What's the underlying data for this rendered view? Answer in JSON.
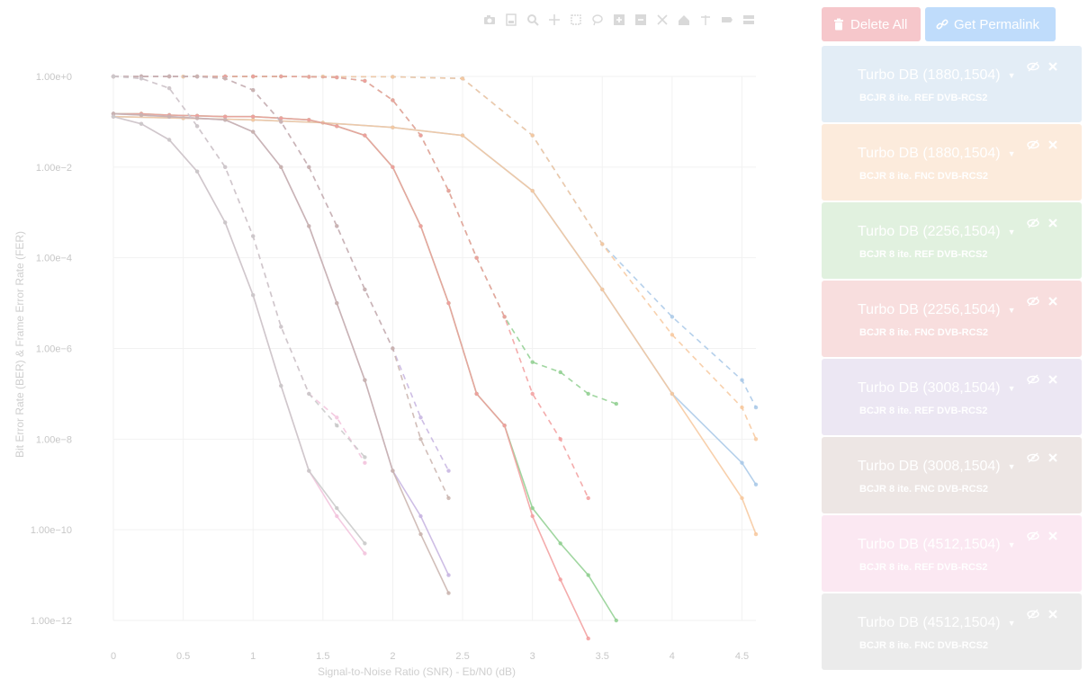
{
  "chart_data": {
    "type": "line",
    "xlabel": "Signal-to-Noise Ratio (SNR) - Eb/N0 (dB)",
    "ylabel": "Bit Error Rate (BER) & Frame Error Rate (FER)",
    "xlim": [
      0,
      4.6
    ],
    "ylim": [
      1e-12,
      1
    ],
    "yscale": "log",
    "x_ticks": [
      "0",
      "0.5",
      "1",
      "1.5",
      "2",
      "2.5",
      "3",
      "3.5",
      "4",
      "4.5"
    ],
    "x_tick_values": [
      0,
      0.5,
      1,
      1.5,
      2,
      2.5,
      3,
      3.5,
      4,
      4.5
    ],
    "y_ticks": [
      "1.00e+0",
      "1.00e−2",
      "1.00e−4",
      "1.00e−6",
      "1.00e−8",
      "1.00e−10",
      "1.00e−12"
    ],
    "y_tick_values": [
      1,
      0.01,
      0.0001,
      1e-06,
      1e-08,
      1e-10,
      1e-12
    ],
    "grid": true,
    "series": [
      {
        "color": "#a8c8e8",
        "ber": {
          "x": [
            0,
            0.5,
            1,
            1.5,
            2,
            2.5,
            3,
            3.5,
            4,
            4.5,
            4.6
          ],
          "y": [
            0.13,
            0.12,
            0.11,
            0.095,
            0.075,
            0.05,
            0.003,
            2e-05,
            1e-07,
            3e-09,
            1e-09
          ]
        },
        "fer": {
          "x": [
            0,
            0.5,
            1,
            1.5,
            2,
            2.5,
            3,
            3.5,
            4,
            4.5,
            4.6
          ],
          "y": [
            0.99,
            0.99,
            0.99,
            0.99,
            0.98,
            0.9,
            0.05,
            0.0002,
            5e-06,
            2e-07,
            5e-08
          ]
        }
      },
      {
        "color": "#f7c89e",
        "ber": {
          "x": [
            0,
            0.5,
            1,
            1.5,
            2,
            2.5,
            3,
            3.5,
            4,
            4.5,
            4.6
          ],
          "y": [
            0.13,
            0.12,
            0.11,
            0.095,
            0.075,
            0.05,
            0.003,
            2e-05,
            1e-07,
            5e-10,
            8e-11
          ]
        },
        "fer": {
          "x": [
            0,
            0.5,
            1,
            1.5,
            2,
            2.5,
            3,
            3.5,
            4,
            4.5,
            4.6
          ],
          "y": [
            0.99,
            0.99,
            0.99,
            0.99,
            0.98,
            0.9,
            0.05,
            0.0002,
            2e-06,
            5e-08,
            1e-08
          ]
        }
      },
      {
        "color": "#8fcf8f",
        "ber": {
          "x": [
            0,
            0.2,
            0.4,
            0.6,
            0.8,
            1.0,
            1.2,
            1.4,
            1.6,
            1.8,
            2.0,
            2.2,
            2.4,
            2.6,
            2.8,
            3.0,
            3.2,
            3.4,
            3.6
          ],
          "y": [
            0.15,
            0.15,
            0.14,
            0.135,
            0.13,
            0.13,
            0.12,
            0.11,
            0.08,
            0.05,
            0.01,
            0.0005,
            1e-05,
            1e-07,
            2e-08,
            3e-10,
            5e-11,
            1e-11,
            1e-12
          ]
        },
        "fer": {
          "x": [
            0,
            0.2,
            0.4,
            0.6,
            0.8,
            1.0,
            1.2,
            1.4,
            1.6,
            1.8,
            2.0,
            2.2,
            2.4,
            2.6,
            2.8,
            3.0,
            3.2,
            3.4,
            3.6
          ],
          "y": [
            1,
            1,
            1,
            1,
            1,
            1,
            1,
            0.98,
            0.95,
            0.8,
            0.3,
            0.05,
            0.003,
            0.0001,
            5e-06,
            5e-07,
            3e-07,
            1e-07,
            6e-08
          ]
        }
      },
      {
        "color": "#f29d9d",
        "ber": {
          "x": [
            0,
            0.2,
            0.4,
            0.6,
            0.8,
            1.0,
            1.2,
            1.4,
            1.6,
            1.8,
            2.0,
            2.2,
            2.4,
            2.6,
            2.8,
            3.0,
            3.2,
            3.4
          ],
          "y": [
            0.15,
            0.15,
            0.14,
            0.135,
            0.13,
            0.13,
            0.12,
            0.11,
            0.08,
            0.05,
            0.01,
            0.0005,
            1e-05,
            1e-07,
            2e-08,
            2e-10,
            8e-12,
            4e-13
          ]
        },
        "fer": {
          "x": [
            0,
            0.2,
            0.4,
            0.6,
            0.8,
            1.0,
            1.2,
            1.4,
            1.6,
            1.8,
            2.0,
            2.2,
            2.4,
            2.6,
            2.8,
            3.0,
            3.2,
            3.4
          ],
          "y": [
            1,
            1,
            1,
            1,
            1,
            1,
            1,
            0.98,
            0.95,
            0.8,
            0.3,
            0.05,
            0.003,
            0.0001,
            5e-06,
            1e-07,
            1e-08,
            5e-10
          ]
        }
      },
      {
        "color": "#c6b3e0",
        "ber": {
          "x": [
            0,
            0.2,
            0.4,
            0.6,
            0.8,
            1.0,
            1.2,
            1.4,
            1.6,
            1.8,
            2.0,
            2.2,
            2.4
          ],
          "y": [
            0.15,
            0.14,
            0.13,
            0.12,
            0.11,
            0.06,
            0.01,
            0.0005,
            1e-05,
            2e-07,
            2e-09,
            2e-10,
            1e-11
          ]
        },
        "fer": {
          "x": [
            0,
            0.2,
            0.4,
            0.6,
            0.8,
            1.0,
            1.2,
            1.4,
            1.6,
            1.8,
            2.0,
            2.2,
            2.4
          ],
          "y": [
            1,
            1,
            1,
            0.99,
            0.9,
            0.5,
            0.1,
            0.01,
            0.0005,
            2e-05,
            1e-06,
            3e-08,
            2e-09
          ]
        }
      },
      {
        "color": "#c9b3ad",
        "ber": {
          "x": [
            0,
            0.2,
            0.4,
            0.6,
            0.8,
            1.0,
            1.2,
            1.4,
            1.6,
            1.8,
            2.0,
            2.2,
            2.4
          ],
          "y": [
            0.15,
            0.14,
            0.13,
            0.12,
            0.11,
            0.06,
            0.01,
            0.0005,
            1e-05,
            2e-07,
            2e-09,
            8e-11,
            4e-12
          ]
        },
        "fer": {
          "x": [
            0,
            0.2,
            0.4,
            0.6,
            0.8,
            1.0,
            1.2,
            1.4,
            1.6,
            1.8,
            2.0,
            2.2,
            2.4
          ],
          "y": [
            1,
            1,
            1,
            0.99,
            0.9,
            0.5,
            0.1,
            0.01,
            0.0005,
            2e-05,
            1e-06,
            1e-08,
            5e-10
          ]
        }
      },
      {
        "color": "#f2c2dc",
        "ber": {
          "x": [
            0,
            0.2,
            0.4,
            0.6,
            0.8,
            1.0,
            1.2,
            1.4,
            1.6,
            1.8
          ],
          "y": [
            0.13,
            0.09,
            0.04,
            0.008,
            0.0006,
            1.5e-05,
            1.5e-07,
            2e-09,
            2e-10,
            3e-11
          ]
        },
        "fer": {
          "x": [
            0,
            0.2,
            0.4,
            0.6,
            0.8,
            1.0,
            1.2,
            1.4,
            1.6,
            1.8
          ],
          "y": [
            1,
            0.9,
            0.55,
            0.08,
            0.01,
            0.0003,
            3e-06,
            1e-07,
            3e-08,
            3e-09
          ]
        }
      },
      {
        "color": "#c8c8c8",
        "ber": {
          "x": [
            0,
            0.2,
            0.4,
            0.6,
            0.8,
            1.0,
            1.2,
            1.4,
            1.6,
            1.8
          ],
          "y": [
            0.13,
            0.09,
            0.04,
            0.008,
            0.0006,
            1.5e-05,
            1.5e-07,
            2e-09,
            3e-10,
            5e-11
          ]
        },
        "fer": {
          "x": [
            0,
            0.2,
            0.4,
            0.6,
            0.8,
            1.0,
            1.2,
            1.4,
            1.6,
            1.8
          ],
          "y": [
            1,
            0.9,
            0.55,
            0.08,
            0.01,
            0.0003,
            3e-06,
            1e-07,
            2e-08,
            4e-09
          ]
        }
      }
    ]
  },
  "toolbar": {
    "delete_label": "Delete All",
    "permalink_label": "Get Permalink",
    "delete_color": "#f6c7cb",
    "permalink_color": "#bfdcfb"
  },
  "modebar_icons": [
    "camera-icon",
    "save-icon",
    "zoom-icon",
    "pan-icon",
    "box-select-icon",
    "lasso-icon",
    "zoom-in-icon",
    "zoom-out-icon",
    "autoscale-icon",
    "reset-axes-icon",
    "spike-lines-icon",
    "hover-closest-icon",
    "hover-compare-icon"
  ],
  "legend": [
    {
      "title": "Turbo DB (1880,1504)",
      "subtitle": "BCJR 8 ite. REF DVB-RCS2",
      "color": "#a8c8e8",
      "bg": "#e3edf6"
    },
    {
      "title": "Turbo DB (1880,1504)",
      "subtitle": "BCJR 8 ite. FNC DVB-RCS2",
      "color": "#f7c89e",
      "bg": "#fcebdc"
    },
    {
      "title": "Turbo DB (2256,1504)",
      "subtitle": "BCJR 8 ite. REF DVB-RCS2",
      "color": "#8fcf8f",
      "bg": "#e1f1df"
    },
    {
      "title": "Turbo DB (2256,1504)",
      "subtitle": "BCJR 8 ite. FNC DVB-RCS2",
      "color": "#f29d9d",
      "bg": "#f8dede"
    },
    {
      "title": "Turbo DB (3008,1504)",
      "subtitle": "BCJR 8 ite. REF DVB-RCS2",
      "color": "#c6b3e0",
      "bg": "#ece7f3"
    },
    {
      "title": "Turbo DB (3008,1504)",
      "subtitle": "BCJR 8 ite. FNC DVB-RCS2",
      "color": "#c9b3ad",
      "bg": "#ede6e4"
    },
    {
      "title": "Turbo DB (4512,1504)",
      "subtitle": "BCJR 8 ite. REF DVB-RCS2",
      "color": "#f2c2dc",
      "bg": "#fbe8f2"
    },
    {
      "title": "Turbo DB (4512,1504)",
      "subtitle": "BCJR 8 ite. FNC DVB-RCS2",
      "color": "#c8c8c8",
      "bg": "#ebebeb"
    }
  ]
}
